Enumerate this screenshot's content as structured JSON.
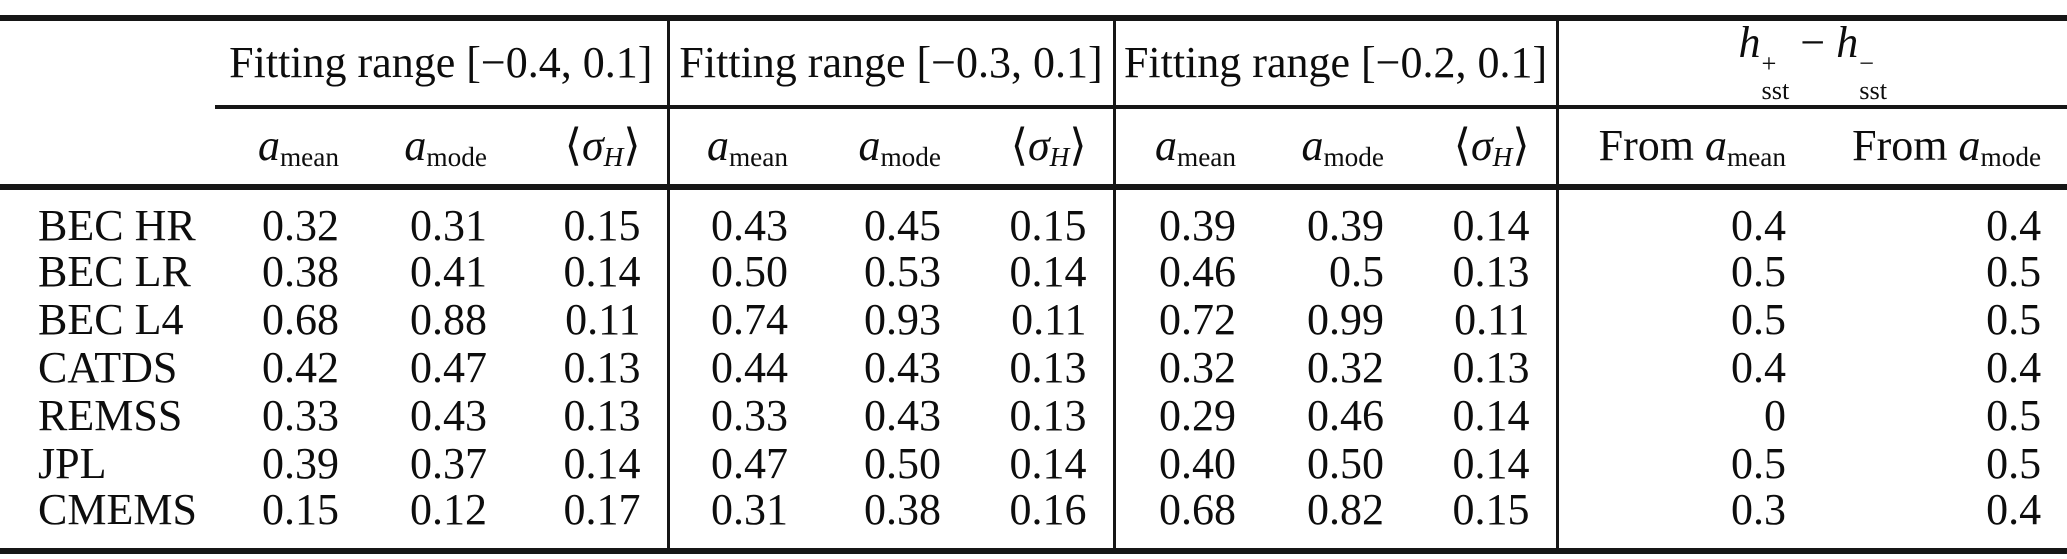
{
  "colors": {
    "text": "#0d0d0d",
    "rule": "#161616",
    "background": "#ffffff"
  },
  "table": {
    "group_headers": [
      "Fitting range [−0.4, 0.1]",
      "Fitting range [−0.3, 0.1]",
      "Fitting range [−0.2, 0.1]"
    ],
    "hsst_tokens": [
      {
        "t": "i",
        "v": "h"
      },
      {
        "t": "supsub",
        "sup": "+",
        "sub": "sst"
      },
      {
        "t": "text",
        "v": " − "
      },
      {
        "t": "i",
        "v": "h"
      },
      {
        "t": "supsub",
        "sup": "−",
        "sub": "sst"
      }
    ],
    "sub_headers": [
      {
        "name": "col-a-mean-range1",
        "vr": false,
        "tokens": [
          {
            "t": "i",
            "v": "a"
          },
          {
            "t": "sub",
            "v": "mean"
          }
        ]
      },
      {
        "name": "col-a-mode-range1",
        "vr": false,
        "tokens": [
          {
            "t": "i",
            "v": "a"
          },
          {
            "t": "sub",
            "v": "mode"
          }
        ]
      },
      {
        "name": "col-sigma-h-range1",
        "vr": true,
        "tokens": [
          {
            "t": "text",
            "v": "⟨"
          },
          {
            "t": "i",
            "v": "σ"
          },
          {
            "t": "subi",
            "v": "H"
          },
          {
            "t": "text",
            "v": "⟩"
          }
        ]
      },
      {
        "name": "col-a-mean-range2",
        "vr": false,
        "tokens": [
          {
            "t": "i",
            "v": "a"
          },
          {
            "t": "sub",
            "v": "mean"
          }
        ]
      },
      {
        "name": "col-a-mode-range2",
        "vr": false,
        "tokens": [
          {
            "t": "i",
            "v": "a"
          },
          {
            "t": "sub",
            "v": "mode"
          }
        ]
      },
      {
        "name": "col-sigma-h-range2",
        "vr": true,
        "tokens": [
          {
            "t": "text",
            "v": "⟨"
          },
          {
            "t": "i",
            "v": "σ"
          },
          {
            "t": "subi",
            "v": "H"
          },
          {
            "t": "text",
            "v": "⟩"
          }
        ]
      },
      {
        "name": "col-a-mean-range3",
        "vr": false,
        "tokens": [
          {
            "t": "i",
            "v": "a"
          },
          {
            "t": "sub",
            "v": "mean"
          }
        ]
      },
      {
        "name": "col-a-mode-range3",
        "vr": false,
        "tokens": [
          {
            "t": "i",
            "v": "a"
          },
          {
            "t": "sub",
            "v": "mode"
          }
        ]
      },
      {
        "name": "col-sigma-h-range3",
        "vr": true,
        "tokens": [
          {
            "t": "text",
            "v": "⟨"
          },
          {
            "t": "i",
            "v": "σ"
          },
          {
            "t": "subi",
            "v": "H"
          },
          {
            "t": "text",
            "v": "⟩"
          }
        ]
      },
      {
        "name": "col-from-a-mean",
        "vr": false,
        "tokens": [
          {
            "t": "text",
            "v": "From "
          },
          {
            "t": "i",
            "v": "a"
          },
          {
            "t": "sub",
            "v": "mean"
          }
        ]
      },
      {
        "name": "col-from-a-mode",
        "vr": false,
        "tokens": [
          {
            "t": "text",
            "v": "From "
          },
          {
            "t": "i",
            "v": "a"
          },
          {
            "t": "sub",
            "v": "mode"
          }
        ]
      }
    ],
    "rows": [
      {
        "label": "BEC HR",
        "values": [
          "0.32",
          "0.31",
          "0.15",
          "0.43",
          "0.45",
          "0.15",
          "0.39",
          "0.39",
          "0.14",
          "0.4",
          "0.4"
        ]
      },
      {
        "label": "BEC LR",
        "values": [
          "0.38",
          "0.41",
          "0.14",
          "0.50",
          "0.53",
          "0.14",
          "0.46",
          "0.5",
          "0.13",
          "0.5",
          "0.5"
        ]
      },
      {
        "label": "BEC L4",
        "values": [
          "0.68",
          "0.88",
          "0.11",
          "0.74",
          "0.93",
          "0.11",
          "0.72",
          "0.99",
          "0.11",
          "0.5",
          "0.5"
        ]
      },
      {
        "label": "CATDS",
        "values": [
          "0.42",
          "0.47",
          "0.13",
          "0.44",
          "0.43",
          "0.13",
          "0.32",
          "0.32",
          "0.13",
          "0.4",
          "0.4"
        ]
      },
      {
        "label": "REMSS",
        "values": [
          "0.33",
          "0.43",
          "0.13",
          "0.33",
          "0.43",
          "0.13",
          "0.29",
          "0.46",
          "0.14",
          "0",
          "0.5"
        ]
      },
      {
        "label": "JPL",
        "values": [
          "0.39",
          "0.37",
          "0.14",
          "0.47",
          "0.50",
          "0.14",
          "0.40",
          "0.50",
          "0.14",
          "0.5",
          "0.5"
        ]
      },
      {
        "label": "CMEMS",
        "values": [
          "0.15",
          "0.12",
          "0.17",
          "0.31",
          "0.38",
          "0.16",
          "0.68",
          "0.82",
          "0.15",
          "0.3",
          "0.4"
        ]
      }
    ]
  }
}
